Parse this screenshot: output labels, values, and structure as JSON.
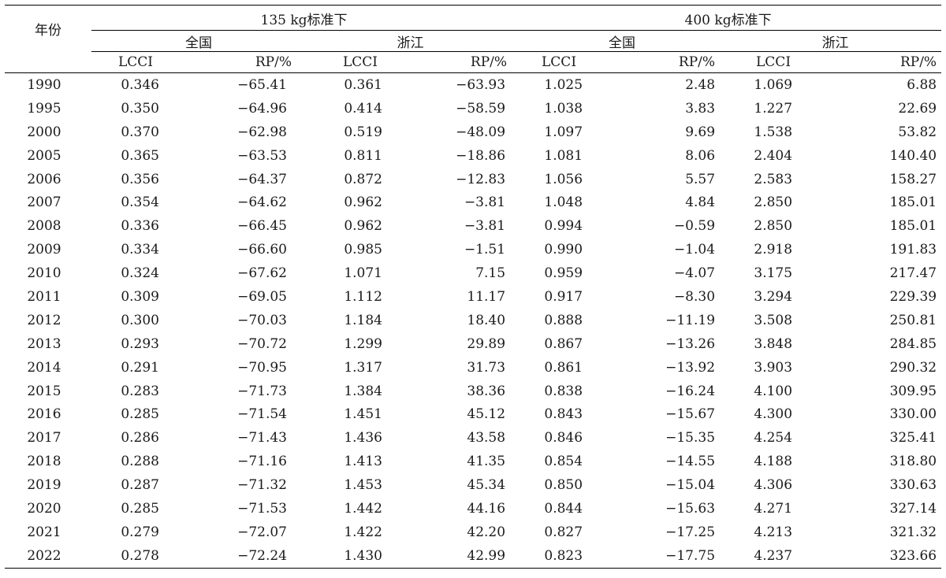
{
  "header": {
    "year_label": "年份",
    "standard_135": "135 kg标准下",
    "standard_400": "400 kg标准下",
    "region_national": "全国",
    "region_zhejiang": "浙江",
    "col_lcci": "LCCI",
    "col_rp": "RP/%"
  },
  "rows": [
    {
      "year": "1990",
      "n135_lcci": "0.346",
      "n135_rp": "−65.41",
      "z135_lcci": "0.361",
      "z135_rp": "−63.93",
      "n400_lcci": "1.025",
      "n400_rp": "2.48",
      "z400_lcci": "1.069",
      "z400_rp": "6.88"
    },
    {
      "year": "1995",
      "n135_lcci": "0.350",
      "n135_rp": "−64.96",
      "z135_lcci": "0.414",
      "z135_rp": "−58.59",
      "n400_lcci": "1.038",
      "n400_rp": "3.83",
      "z400_lcci": "1.227",
      "z400_rp": "22.69"
    },
    {
      "year": "2000",
      "n135_lcci": "0.370",
      "n135_rp": "−62.98",
      "z135_lcci": "0.519",
      "z135_rp": "−48.09",
      "n400_lcci": "1.097",
      "n400_rp": "9.69",
      "z400_lcci": "1.538",
      "z400_rp": "53.82"
    },
    {
      "year": "2005",
      "n135_lcci": "0.365",
      "n135_rp": "−63.53",
      "z135_lcci": "0.811",
      "z135_rp": "−18.86",
      "n400_lcci": "1.081",
      "n400_rp": "8.06",
      "z400_lcci": "2.404",
      "z400_rp": "140.40"
    },
    {
      "year": "2006",
      "n135_lcci": "0.356",
      "n135_rp": "−64.37",
      "z135_lcci": "0.872",
      "z135_rp": "−12.83",
      "n400_lcci": "1.056",
      "n400_rp": "5.57",
      "z400_lcci": "2.583",
      "z400_rp": "158.27"
    },
    {
      "year": "2007",
      "n135_lcci": "0.354",
      "n135_rp": "−64.62",
      "z135_lcci": "0.962",
      "z135_rp": "−3.81",
      "n400_lcci": "1.048",
      "n400_rp": "4.84",
      "z400_lcci": "2.850",
      "z400_rp": "185.01"
    },
    {
      "year": "2008",
      "n135_lcci": "0.336",
      "n135_rp": "−66.45",
      "z135_lcci": "0.962",
      "z135_rp": "−3.81",
      "n400_lcci": "0.994",
      "n400_rp": "−0.59",
      "z400_lcci": "2.850",
      "z400_rp": "185.01"
    },
    {
      "year": "2009",
      "n135_lcci": "0.334",
      "n135_rp": "−66.60",
      "z135_lcci": "0.985",
      "z135_rp": "−1.51",
      "n400_lcci": "0.990",
      "n400_rp": "−1.04",
      "z400_lcci": "2.918",
      "z400_rp": "191.83"
    },
    {
      "year": "2010",
      "n135_lcci": "0.324",
      "n135_rp": "−67.62",
      "z135_lcci": "1.071",
      "z135_rp": "7.15",
      "n400_lcci": "0.959",
      "n400_rp": "−4.07",
      "z400_lcci": "3.175",
      "z400_rp": "217.47"
    },
    {
      "year": "2011",
      "n135_lcci": "0.309",
      "n135_rp": "−69.05",
      "z135_lcci": "1.112",
      "z135_rp": "11.17",
      "n400_lcci": "0.917",
      "n400_rp": "−8.30",
      "z400_lcci": "3.294",
      "z400_rp": "229.39"
    },
    {
      "year": "2012",
      "n135_lcci": "0.300",
      "n135_rp": "−70.03",
      "z135_lcci": "1.184",
      "z135_rp": "18.40",
      "n400_lcci": "0.888",
      "n400_rp": "−11.19",
      "z400_lcci": "3.508",
      "z400_rp": "250.81"
    },
    {
      "year": "2013",
      "n135_lcci": "0.293",
      "n135_rp": "−70.72",
      "z135_lcci": "1.299",
      "z135_rp": "29.89",
      "n400_lcci": "0.867",
      "n400_rp": "−13.26",
      "z400_lcci": "3.848",
      "z400_rp": "284.85"
    },
    {
      "year": "2014",
      "n135_lcci": "0.291",
      "n135_rp": "−70.95",
      "z135_lcci": "1.317",
      "z135_rp": "31.73",
      "n400_lcci": "0.861",
      "n400_rp": "−13.92",
      "z400_lcci": "3.903",
      "z400_rp": "290.32"
    },
    {
      "year": "2015",
      "n135_lcci": "0.283",
      "n135_rp": "−71.73",
      "z135_lcci": "1.384",
      "z135_rp": "38.36",
      "n400_lcci": "0.838",
      "n400_rp": "−16.24",
      "z400_lcci": "4.100",
      "z400_rp": "309.95"
    },
    {
      "year": "2016",
      "n135_lcci": "0.285",
      "n135_rp": "−71.54",
      "z135_lcci": "1.451",
      "z135_rp": "45.12",
      "n400_lcci": "0.843",
      "n400_rp": "−15.67",
      "z400_lcci": "4.300",
      "z400_rp": "330.00"
    },
    {
      "year": "2017",
      "n135_lcci": "0.286",
      "n135_rp": "−71.43",
      "z135_lcci": "1.436",
      "z135_rp": "43.58",
      "n400_lcci": "0.846",
      "n400_rp": "−15.35",
      "z400_lcci": "4.254",
      "z400_rp": "325.41"
    },
    {
      "year": "2018",
      "n135_lcci": "0.288",
      "n135_rp": "−71.16",
      "z135_lcci": "1.413",
      "z135_rp": "41.35",
      "n400_lcci": "0.854",
      "n400_rp": "−14.55",
      "z400_lcci": "4.188",
      "z400_rp": "318.80"
    },
    {
      "year": "2019",
      "n135_lcci": "0.287",
      "n135_rp": "−71.32",
      "z135_lcci": "1.453",
      "z135_rp": "45.34",
      "n400_lcci": "0.850",
      "n400_rp": "−15.04",
      "z400_lcci": "4.306",
      "z400_rp": "330.63"
    },
    {
      "year": "2020",
      "n135_lcci": "0.285",
      "n135_rp": "−71.53",
      "z135_lcci": "1.442",
      "z135_rp": "44.16",
      "n400_lcci": "0.844",
      "n400_rp": "−15.63",
      "z400_lcci": "4.271",
      "z400_rp": "327.14"
    },
    {
      "year": "2021",
      "n135_lcci": "0.279",
      "n135_rp": "−72.07",
      "z135_lcci": "1.422",
      "z135_rp": "42.20",
      "n400_lcci": "0.827",
      "n400_rp": "−17.25",
      "z400_lcci": "4.213",
      "z400_rp": "321.32"
    },
    {
      "year": "2022",
      "n135_lcci": "0.278",
      "n135_rp": "−72.24",
      "z135_lcci": "1.430",
      "z135_rp": "42.99",
      "n400_lcci": "0.823",
      "n400_rp": "−17.75",
      "z400_lcci": "4.237",
      "z400_rp": "323.66"
    }
  ]
}
